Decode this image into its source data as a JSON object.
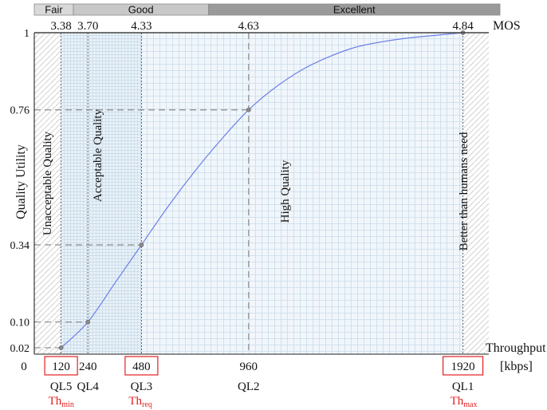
{
  "chart_data": {
    "type": "line",
    "xlabel": "Throughput",
    "xunit": "[kbps]",
    "ylabel": "Quality Utility",
    "top_axis_label": "MOS",
    "xlim": [
      0,
      2100
    ],
    "ylim": [
      0,
      1
    ],
    "series": [
      {
        "x": [
          120,
          240,
          360,
          480,
          600,
          720,
          840,
          960,
          1080,
          1200,
          1320,
          1440,
          1560,
          1680,
          1800,
          1920
        ],
        "y": [
          0.02,
          0.1,
          0.22,
          0.34,
          0.46,
          0.57,
          0.67,
          0.76,
          0.83,
          0.885,
          0.925,
          0.955,
          0.972,
          0.984,
          0.992,
          1.0
        ]
      }
    ],
    "x_ticks": [
      {
        "value": 0,
        "label": "0"
      },
      {
        "value": 120,
        "label": "120",
        "boxed": true
      },
      {
        "value": 240,
        "label": "240"
      },
      {
        "value": 480,
        "label": "480",
        "boxed": true
      },
      {
        "value": 960,
        "label": "960"
      },
      {
        "value": 1920,
        "label": "1920",
        "boxed": true
      }
    ],
    "y_ticks": [
      {
        "value": 0.02,
        "label": "0.02"
      },
      {
        "value": 0.1,
        "label": "0.10"
      },
      {
        "value": 0.34,
        "label": "0.34"
      },
      {
        "value": 0.76,
        "label": "0.76"
      },
      {
        "value": 1.0,
        "label": "1"
      }
    ],
    "mos_ticks": [
      {
        "value": 120,
        "label": "3.38"
      },
      {
        "value": 240,
        "label": "3.70"
      },
      {
        "value": 480,
        "label": "4.33"
      },
      {
        "value": 960,
        "label": "4.63"
      },
      {
        "value": 1920,
        "label": "4.84"
      }
    ],
    "mos_bands": [
      {
        "label": "Fair",
        "from": 0,
        "to": 175
      },
      {
        "label": "Good",
        "from": 175,
        "to": 780
      },
      {
        "label": "Excellent",
        "from": 780,
        "to": 2100
      }
    ],
    "quality_levels": [
      {
        "value": 120,
        "label": "QL5",
        "threshold": {
          "base": "Th",
          "sub": "min"
        }
      },
      {
        "value": 240,
        "label": "QL4"
      },
      {
        "value": 480,
        "label": "QL3",
        "threshold": {
          "base": "Th",
          "sub": "req"
        }
      },
      {
        "value": 960,
        "label": "QL2"
      },
      {
        "value": 1920,
        "label": "QL1",
        "threshold": {
          "base": "Th",
          "sub": "max"
        }
      }
    ],
    "region_labels": [
      {
        "text": "Unacceptable Quality",
        "x": 75
      },
      {
        "text": "Acceptable Quality",
        "x": 300
      },
      {
        "text": "High Quality",
        "x": 1140
      },
      {
        "text": "Better than humans need",
        "x": 1940
      }
    ],
    "colors": {
      "curve": "#6d7fe8",
      "highlight": "#e32020",
      "band_fill": "#c8c8c8",
      "band_fill_dark": "#9a9a9a",
      "grid": "#c7dbe9",
      "hatch": "#d4d4d4"
    }
  }
}
